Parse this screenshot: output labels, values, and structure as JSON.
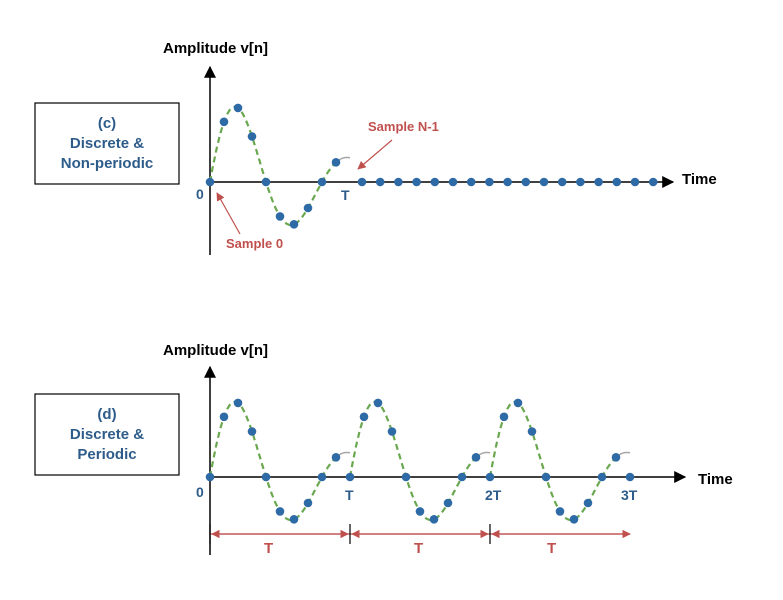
{
  "colors": {
    "dot": "#2e6aa6",
    "dashed_curve": "#6aa84f",
    "gray_curve": "#a6a6a6",
    "annotation": "#c0504d",
    "label_blue": "#2e5c8a"
  },
  "panel_c": {
    "box_lines": [
      "(c)",
      "Discrete &",
      "Non-periodic"
    ],
    "y_axis_title": "Amplitude  v[n]",
    "x_axis_title": "Time",
    "origin_label": "0",
    "period_label": "T",
    "annotation_start": "Sample 0",
    "annotation_end": "Sample N-1"
  },
  "panel_d": {
    "box_lines": [
      "(d)",
      "Discrete &",
      "Periodic"
    ],
    "y_axis_title": "Amplitude  v[n]",
    "x_axis_title": "Time",
    "tick_labels": [
      "0",
      "T",
      "2T",
      "3T"
    ],
    "period_span_labels": [
      "T",
      "T",
      "T"
    ]
  }
}
